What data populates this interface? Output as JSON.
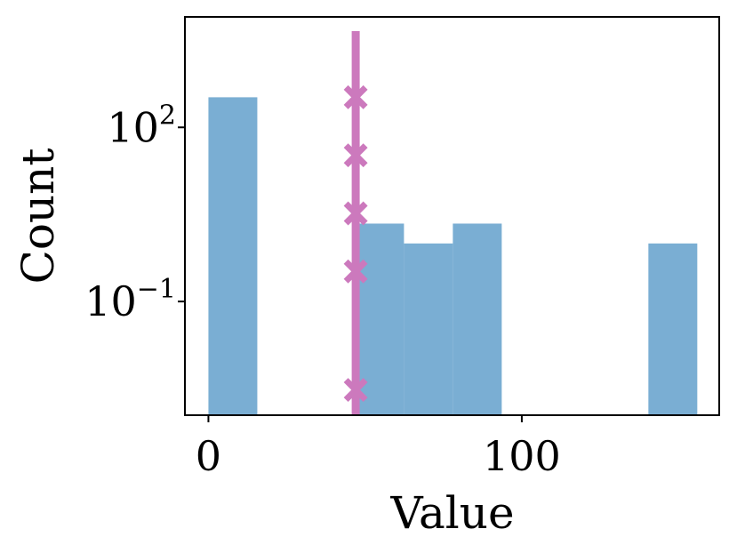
{
  "chart_data": {
    "type": "bar",
    "xlabel": "Value",
    "ylabel": "Count",
    "y_scale": "log",
    "xlim": [
      -7.5,
      163
    ],
    "ylim": [
      0.0011,
      8000
    ],
    "x_ticks": [
      {
        "value": 0,
        "label": "0"
      },
      {
        "value": 100,
        "label": "100"
      }
    ],
    "y_ticks": [
      {
        "value": 100,
        "base": "10",
        "exponent": "2"
      },
      {
        "value": 0.1,
        "base": "10",
        "exponent": "−1"
      }
    ],
    "bins": [
      {
        "x0": 0.0,
        "x1": 15.6,
        "count": 330
      },
      {
        "x0": 15.6,
        "x1": 31.2,
        "count": 0
      },
      {
        "x0": 31.2,
        "x1": 46.8,
        "count": 0
      },
      {
        "x0": 46.8,
        "x1": 62.4,
        "count": 2.2
      },
      {
        "x0": 62.4,
        "x1": 78.0,
        "count": 1.0
      },
      {
        "x0": 78.0,
        "x1": 93.6,
        "count": 2.2
      },
      {
        "x0": 93.6,
        "x1": 109.2,
        "count": 0
      },
      {
        "x0": 109.2,
        "x1": 124.8,
        "count": 0
      },
      {
        "x0": 124.8,
        "x1": 140.4,
        "count": 0
      },
      {
        "x0": 140.4,
        "x1": 156.0,
        "count": 1.0
      }
    ],
    "vline": {
      "x": 47.0,
      "marker": "x",
      "marker_y": [
        330,
        33,
        3.3,
        0.33,
        0.003
      ]
    },
    "colors": {
      "bars": "#7aaed3",
      "vline": "#cc79bd",
      "axes": "#000000"
    }
  }
}
